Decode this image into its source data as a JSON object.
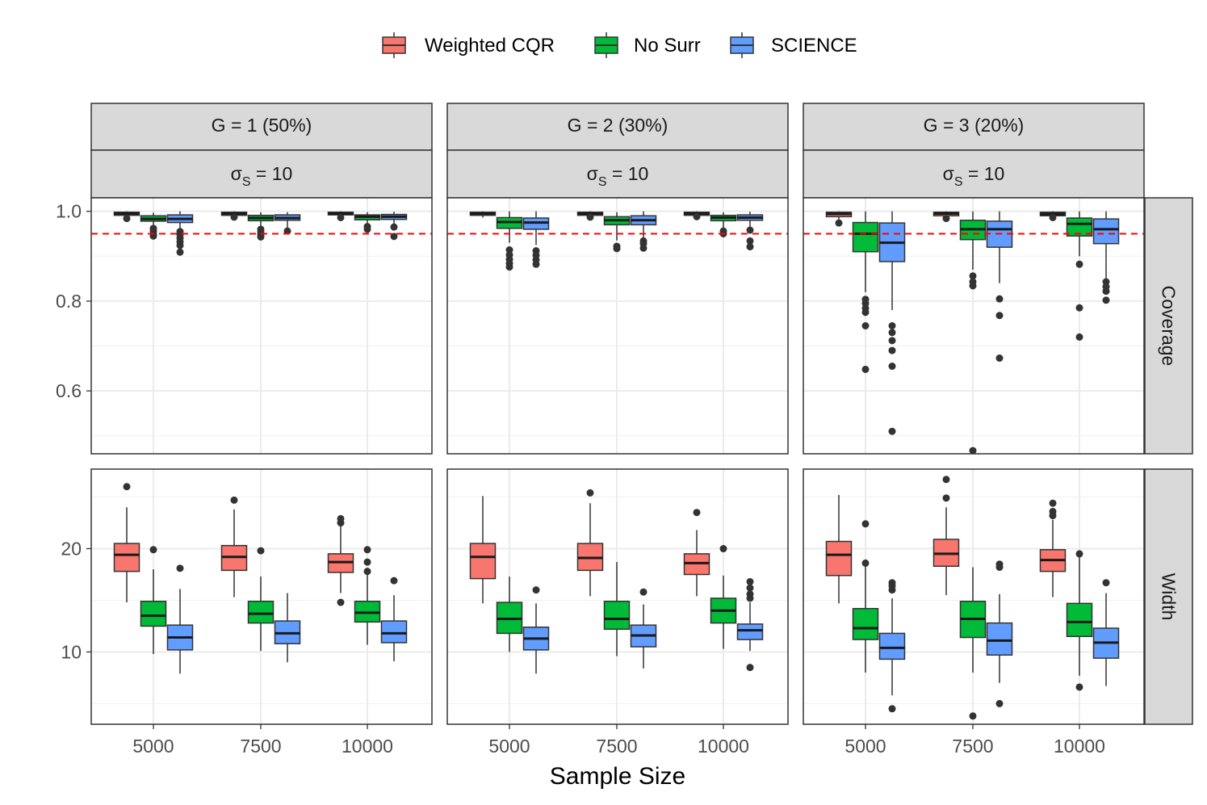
{
  "chart_data": {
    "type": "boxplot",
    "xlabel": "Sample Size",
    "ylabel": "",
    "legend": {
      "position": "top",
      "entries": [
        {
          "name": "Weighted CQR",
          "color": "#F8766D"
        },
        {
          "name": "No Surr",
          "color": "#00BA38"
        },
        {
          "name": "SCIENCE",
          "color": "#619CFF"
        }
      ]
    },
    "facet_columns": [
      {
        "label": "G = 1 (50%)",
        "sublabel_sym": "σ",
        "sublabel_sub": "S",
        "sublabel_rest": " = 10"
      },
      {
        "label": "G = 2 (30%)",
        "sublabel_sym": "σ",
        "sublabel_sub": "S",
        "sublabel_rest": " = 10"
      },
      {
        "label": "G = 3 (20%)",
        "sublabel_sym": "σ",
        "sublabel_sub": "S",
        "sublabel_rest": " = 10"
      }
    ],
    "facet_rows": [
      {
        "label": "Coverage",
        "ylim": [
          0.46,
          1.03
        ],
        "ticks": [
          0.6,
          0.8,
          1.0
        ],
        "tick_labels": [
          "0.6",
          "0.8",
          "1.0"
        ],
        "minor": [
          0.5,
          0.7,
          0.9
        ],
        "reference_line": 0.95,
        "reference_color": "#ff0000"
      },
      {
        "label": "Width",
        "ylim": [
          3.0,
          27.7
        ],
        "ticks": [
          10,
          20
        ],
        "tick_labels": [
          "10",
          "20"
        ],
        "minor": [
          5,
          15,
          25
        ],
        "reference_line": null
      }
    ],
    "categories": [
      "5000",
      "7500",
      "10000"
    ],
    "panels": [
      [
        {
          "groups": [
            [
              {
                "q1": 0.991,
                "med": 0.995,
                "q3": 0.998,
                "lo": 0.988,
                "hi": 1.0,
                "out": [
                  0.984
                ]
              },
              {
                "q1": 0.978,
                "med": 0.983,
                "q3": 0.99,
                "lo": 0.968,
                "hi": 0.997,
                "out": [
                  0.962,
                  0.956,
                  0.949,
                  0.945
                ]
              },
              {
                "q1": 0.975,
                "med": 0.983,
                "q3": 0.992,
                "lo": 0.962,
                "hi": 1.0,
                "out": [
                  0.955,
                  0.948,
                  0.94,
                  0.932,
                  0.924,
                  0.909
                ]
              }
            ],
            [
              {
                "q1": 0.991,
                "med": 0.995,
                "q3": 0.998,
                "lo": 0.988,
                "hi": 1.0,
                "out": [
                  0.987
                ]
              },
              {
                "q1": 0.979,
                "med": 0.985,
                "q3": 0.991,
                "lo": 0.968,
                "hi": 0.998,
                "out": [
                  0.96,
                  0.954,
                  0.948,
                  0.943
                ]
              },
              {
                "q1": 0.98,
                "med": 0.985,
                "q3": 0.992,
                "lo": 0.963,
                "hi": 0.998,
                "out": [
                  0.956
                ]
              }
            ],
            [
              {
                "q1": 0.992,
                "med": 0.995,
                "q3": 0.998,
                "lo": 0.988,
                "hi": 1.0,
                "out": [
                  0.986
                ]
              },
              {
                "q1": 0.981,
                "med": 0.988,
                "q3": 0.992,
                "lo": 0.972,
                "hi": 0.998,
                "out": [
                  0.966,
                  0.96
                ]
              },
              {
                "q1": 0.982,
                "med": 0.988,
                "q3": 0.993,
                "lo": 0.972,
                "hi": 0.999,
                "out": [
                  0.965,
                  0.944
                ]
              }
            ]
          ]
        },
        {
          "groups": [
            [
              {
                "q1": 0.991,
                "med": 0.995,
                "q3": 0.998,
                "lo": 0.986,
                "hi": 1.0,
                "out": []
              },
              {
                "q1": 0.962,
                "med": 0.976,
                "q3": 0.986,
                "lo": 0.93,
                "hi": 1.0,
                "out": [
                  0.914,
                  0.903,
                  0.893,
                  0.884,
                  0.876
                ]
              },
              {
                "q1": 0.96,
                "med": 0.975,
                "q3": 0.985,
                "lo": 0.925,
                "hi": 1.0,
                "out": [
                  0.912,
                  0.902,
                  0.892,
                  0.882
                ]
              }
            ],
            [
              {
                "q1": 0.991,
                "med": 0.995,
                "q3": 0.998,
                "lo": 0.988,
                "hi": 1.0,
                "out": [
                  0.987
                ]
              },
              {
                "q1": 0.97,
                "med": 0.98,
                "q3": 0.988,
                "lo": 0.935,
                "hi": 0.998,
                "out": [
                  0.922,
                  0.917
                ]
              },
              {
                "q1": 0.97,
                "med": 0.98,
                "q3": 0.99,
                "lo": 0.942,
                "hi": 1.0,
                "out": [
                  0.934,
                  0.928,
                  0.918
                ]
              }
            ],
            [
              {
                "q1": 0.991,
                "med": 0.995,
                "q3": 0.998,
                "lo": 0.988,
                "hi": 1.0,
                "out": [
                  0.988
                ]
              },
              {
                "q1": 0.979,
                "med": 0.986,
                "q3": 0.991,
                "lo": 0.962,
                "hi": 0.998,
                "out": [
                  0.956,
                  0.95
                ]
              },
              {
                "q1": 0.98,
                "med": 0.986,
                "q3": 0.992,
                "lo": 0.965,
                "hi": 0.999,
                "out": [
                  0.958,
                  0.934,
                  0.921
                ]
              }
            ]
          ]
        },
        {
          "groups": [
            [
              {
                "q1": 0.988,
                "med": 0.994,
                "q3": 0.998,
                "lo": 0.982,
                "hi": 1.0,
                "out": [
                  0.974
                ]
              },
              {
                "q1": 0.91,
                "med": 0.95,
                "q3": 0.975,
                "lo": 0.82,
                "hi": 1.0,
                "out": [
                  0.804,
                  0.795,
                  0.784,
                  0.775,
                  0.745,
                  0.648
                ]
              },
              {
                "q1": 0.888,
                "med": 0.93,
                "q3": 0.974,
                "lo": 0.78,
                "hi": 1.0,
                "out": [
                  0.745,
                  0.73,
                  0.712,
                  0.69,
                  0.655,
                  0.51
                ]
              }
            ],
            [
              {
                "q1": 0.99,
                "med": 0.995,
                "q3": 0.998,
                "lo": 0.988,
                "hi": 1.0,
                "out": [
                  0.984
                ]
              },
              {
                "q1": 0.937,
                "med": 0.96,
                "q3": 0.98,
                "lo": 0.87,
                "hi": 1.0,
                "out": [
                  0.856,
                  0.843,
                  0.834,
                  0.467
                ]
              },
              {
                "q1": 0.92,
                "med": 0.96,
                "q3": 0.978,
                "lo": 0.84,
                "hi": 1.0,
                "out": [
                  0.805,
                  0.768,
                  0.673
                ]
              }
            ],
            [
              {
                "q1": 0.99,
                "med": 0.994,
                "q3": 0.998,
                "lo": 0.988,
                "hi": 1.0,
                "out": [
                  0.986
                ]
              },
              {
                "q1": 0.945,
                "med": 0.972,
                "q3": 0.985,
                "lo": 0.9,
                "hi": 1.0,
                "out": [
                  0.882,
                  0.785,
                  0.72
                ]
              },
              {
                "q1": 0.928,
                "med": 0.96,
                "q3": 0.983,
                "lo": 0.85,
                "hi": 1.0,
                "out": [
                  0.843,
                  0.832,
                  0.822,
                  0.802
                ]
              }
            ]
          ]
        }
      ],
      [
        {
          "groups": [
            [
              {
                "q1": 17.8,
                "med": 19.4,
                "q3": 20.5,
                "lo": 14.8,
                "hi": 24.0,
                "out": [
                  26.0
                ]
              },
              {
                "q1": 12.5,
                "med": 13.5,
                "q3": 14.9,
                "lo": 9.8,
                "hi": 18.0,
                "out": [
                  19.9
                ]
              },
              {
                "q1": 10.2,
                "med": 11.4,
                "q3": 12.6,
                "lo": 7.9,
                "hi": 16.1,
                "out": [
                  18.1
                ]
              }
            ],
            [
              {
                "q1": 17.9,
                "med": 19.2,
                "q3": 20.3,
                "lo": 15.3,
                "hi": 23.8,
                "out": [
                  24.7
                ]
              },
              {
                "q1": 12.8,
                "med": 13.7,
                "q3": 14.9,
                "lo": 10.1,
                "hi": 17.3,
                "out": [
                  19.8
                ]
              },
              {
                "q1": 10.8,
                "med": 11.8,
                "q3": 13.0,
                "lo": 9.0,
                "hi": 15.7,
                "out": []
              }
            ],
            [
              {
                "q1": 17.7,
                "med": 18.7,
                "q3": 19.5,
                "lo": 15.7,
                "hi": 22.2,
                "out": [
                  22.9,
                  22.5,
                  14.8
                ]
              },
              {
                "q1": 12.9,
                "med": 13.8,
                "q3": 14.9,
                "lo": 10.7,
                "hi": 17.5,
                "out": [
                  19.9,
                  18.7,
                  17.8
                ]
              },
              {
                "q1": 10.9,
                "med": 11.8,
                "q3": 13.0,
                "lo": 9.1,
                "hi": 15.5,
                "out": [
                  16.9
                ]
              }
            ]
          ]
        },
        {
          "groups": [
            [
              {
                "q1": 17.1,
                "med": 19.2,
                "q3": 20.5,
                "lo": 14.7,
                "hi": 25.1,
                "out": []
              },
              {
                "q1": 11.8,
                "med": 13.2,
                "q3": 14.8,
                "lo": 10.0,
                "hi": 17.3,
                "out": []
              },
              {
                "q1": 10.2,
                "med": 11.3,
                "q3": 12.4,
                "lo": 7.9,
                "hi": 14.7,
                "out": [
                  16.0
                ]
              }
            ],
            [
              {
                "q1": 17.9,
                "med": 19.1,
                "q3": 20.5,
                "lo": 15.4,
                "hi": 24.4,
                "out": [
                  25.4
                ]
              },
              {
                "q1": 12.2,
                "med": 13.2,
                "q3": 14.9,
                "lo": 9.6,
                "hi": 18.7,
                "out": []
              },
              {
                "q1": 10.5,
                "med": 11.6,
                "q3": 12.6,
                "lo": 8.4,
                "hi": 14.6,
                "out": [
                  15.8
                ]
              }
            ],
            [
              {
                "q1": 17.5,
                "med": 18.6,
                "q3": 19.5,
                "lo": 15.4,
                "hi": 21.8,
                "out": [
                  23.5
                ]
              },
              {
                "q1": 12.8,
                "med": 14.0,
                "q3": 15.2,
                "lo": 10.3,
                "hi": 17.4,
                "out": [
                  20.0
                ]
              },
              {
                "q1": 11.2,
                "med": 12.1,
                "q3": 12.7,
                "lo": 10.1,
                "hi": 14.8,
                "out": [
                  16.8,
                  16.2,
                  15.6,
                  15.2,
                  8.5
                ]
              }
            ]
          ]
        },
        {
          "groups": [
            [
              {
                "q1": 17.4,
                "med": 19.4,
                "q3": 20.7,
                "lo": 14.7,
                "hi": 25.2,
                "out": []
              },
              {
                "q1": 11.2,
                "med": 12.3,
                "q3": 14.2,
                "lo": 8.0,
                "hi": 18.4,
                "out": [
                  22.4,
                  18.6
                ]
              },
              {
                "q1": 9.3,
                "med": 10.4,
                "q3": 11.8,
                "lo": 5.8,
                "hi": 15.2,
                "out": [
                  16.7,
                  16.4,
                  16.0,
                  4.5
                ]
              }
            ],
            [
              {
                "q1": 18.3,
                "med": 19.5,
                "q3": 20.9,
                "lo": 15.5,
                "hi": 24.0,
                "out": [
                  26.7,
                  24.9
                ]
              },
              {
                "q1": 11.4,
                "med": 13.2,
                "q3": 14.9,
                "lo": 8.0,
                "hi": 18.2,
                "out": [
                  3.8
                ]
              },
              {
                "q1": 9.7,
                "med": 11.1,
                "q3": 12.8,
                "lo": 7.0,
                "hi": 15.6,
                "out": [
                  18.5,
                  18.2,
                  5.0
                ]
              }
            ],
            [
              {
                "q1": 17.8,
                "med": 18.9,
                "q3": 19.9,
                "lo": 15.3,
                "hi": 22.8,
                "out": [
                  24.4,
                  23.6,
                  23.2
                ]
              },
              {
                "q1": 11.5,
                "med": 12.9,
                "q3": 14.7,
                "lo": 7.7,
                "hi": 19.4,
                "out": [
                  19.5,
                  6.6
                ]
              },
              {
                "q1": 9.4,
                "med": 10.9,
                "q3": 12.3,
                "lo": 6.7,
                "hi": 15.7,
                "out": [
                  16.7
                ]
              }
            ]
          ]
        }
      ]
    ]
  }
}
